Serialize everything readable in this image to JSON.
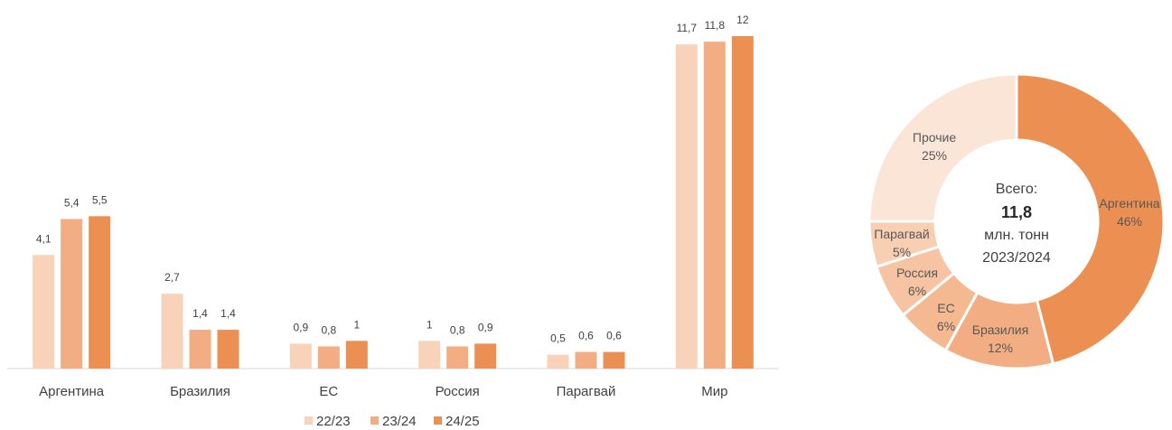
{
  "colors": {
    "series": [
      "#f8d2b9",
      "#f2ad82",
      "#ec8f52"
    ],
    "axis": "#d9d9d9",
    "text": "#404040"
  },
  "chart_data": [
    {
      "type": "bar",
      "categories": [
        "Аргентина",
        "Бразилия",
        "ЕС",
        "Россия",
        "Парагвай",
        "Мир"
      ],
      "series": [
        {
          "name": "22/23",
          "values": [
            4.1,
            2.7,
            0.9,
            1,
            0.5,
            11.7
          ],
          "labels": [
            "4,1",
            "2,7",
            "0,9",
            "1",
            "0,5",
            "11,7"
          ]
        },
        {
          "name": "23/24",
          "values": [
            5.4,
            1.4,
            0.8,
            0.8,
            0.6,
            11.8
          ],
          "labels": [
            "5,4",
            "1,4",
            "0,8",
            "0,8",
            "0,6",
            "11,8"
          ]
        },
        {
          "name": "24/25",
          "values": [
            5.5,
            1.4,
            1,
            0.9,
            0.6,
            12
          ],
          "labels": [
            "5,5",
            "1,4",
            "1",
            "0,9",
            "0,6",
            "12"
          ]
        }
      ],
      "ylim": [
        0,
        12
      ],
      "grid": false,
      "legend": "bottom"
    },
    {
      "type": "pie",
      "variant": "donut",
      "slices": [
        {
          "name": "Аргентина",
          "value": 46,
          "label": "46%"
        },
        {
          "name": "Бразилия",
          "value": 12,
          "label": "12%"
        },
        {
          "name": "ЕС",
          "value": 6,
          "label": "6%"
        },
        {
          "name": "Россия",
          "value": 6,
          "label": "6%"
        },
        {
          "name": "Парагвай",
          "value": 5,
          "label": "5%"
        },
        {
          "name": "Прочие",
          "value": 25,
          "label": "25%"
        }
      ],
      "slice_colors": [
        "#ec8f52",
        "#f2ad82",
        "#f4b990",
        "#f6c4a3",
        "#f8cfb3",
        "#fbe5d6"
      ],
      "center": {
        "line1": "Всего:",
        "value": "11,8",
        "line3": "млн. тонн",
        "line4": "2023/2024"
      }
    }
  ]
}
